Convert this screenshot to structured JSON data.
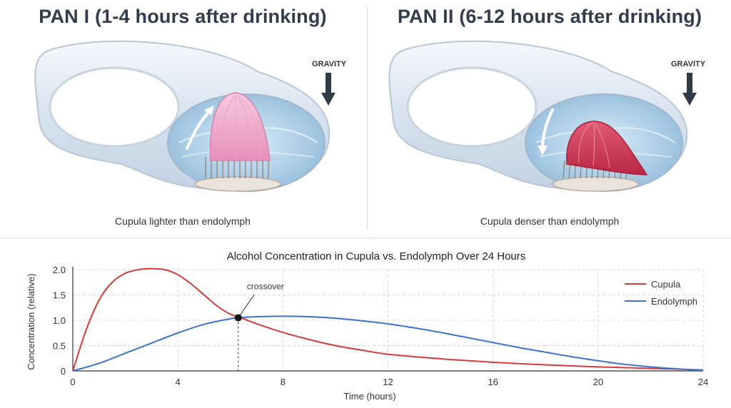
{
  "panels": [
    {
      "title": "PAN I (1-4 hours after drinking)",
      "gravity": "GRAVITY",
      "caption": "Cupula lighter than endolymph"
    },
    {
      "title": "PAN II (6-12 hours after drinking)",
      "gravity": "GRAVITY",
      "caption": "Cupula denser than endolymph"
    }
  ],
  "colors": {
    "cupula": "#d9393a",
    "endolymph": "#3d72cf",
    "cupula_light": "#f2b6d2",
    "cupula_dense": "#cf3452"
  },
  "chart_data": {
    "type": "line",
    "title": "Alcohol Concentration in Cupula vs. Endolymph Over 24 Hours",
    "xlabel": "Time (hours)",
    "ylabel": "Concentration (relative)",
    "xlim": [
      0,
      24
    ],
    "ylim": [
      0,
      2.0
    ],
    "xticks": [
      0,
      4,
      8,
      12,
      16,
      20,
      24
    ],
    "yticks": [
      0,
      0.5,
      1.0,
      1.5,
      2.0
    ],
    "ytick_labels": [
      "0",
      "0.5",
      "1.0",
      "1.5",
      "2.0"
    ],
    "grid": true,
    "legend": "top-right",
    "series": [
      {
        "name": "Cupula",
        "x": [
          0,
          0.5,
          1,
          1.5,
          2,
          2.5,
          3,
          3.5,
          4,
          4.5,
          5,
          5.5,
          6,
          6.3,
          7,
          8,
          9,
          10,
          11,
          12,
          14,
          16,
          18,
          20,
          22,
          24
        ],
        "y": [
          0,
          0.8,
          1.4,
          1.75,
          1.93,
          2.0,
          2.02,
          2.0,
          1.9,
          1.72,
          1.5,
          1.28,
          1.12,
          1.07,
          0.93,
          0.76,
          0.62,
          0.5,
          0.41,
          0.33,
          0.24,
          0.17,
          0.12,
          0.08,
          0.05,
          0.02
        ]
      },
      {
        "name": "Endolymph",
        "x": [
          0,
          1,
          2,
          3,
          4,
          5,
          6,
          6.3,
          7,
          8,
          9,
          10,
          11,
          12,
          13,
          14,
          15,
          16,
          17,
          18,
          19,
          20,
          21,
          22,
          23,
          24
        ],
        "y": [
          0,
          0.15,
          0.35,
          0.55,
          0.75,
          0.92,
          1.03,
          1.05,
          1.07,
          1.08,
          1.07,
          1.04,
          0.99,
          0.93,
          0.85,
          0.76,
          0.66,
          0.56,
          0.46,
          0.37,
          0.28,
          0.2,
          0.13,
          0.08,
          0.04,
          0.01
        ]
      }
    ],
    "annotations": [
      {
        "text": "crossover",
        "x": 6.3,
        "y": 1.05
      }
    ]
  }
}
